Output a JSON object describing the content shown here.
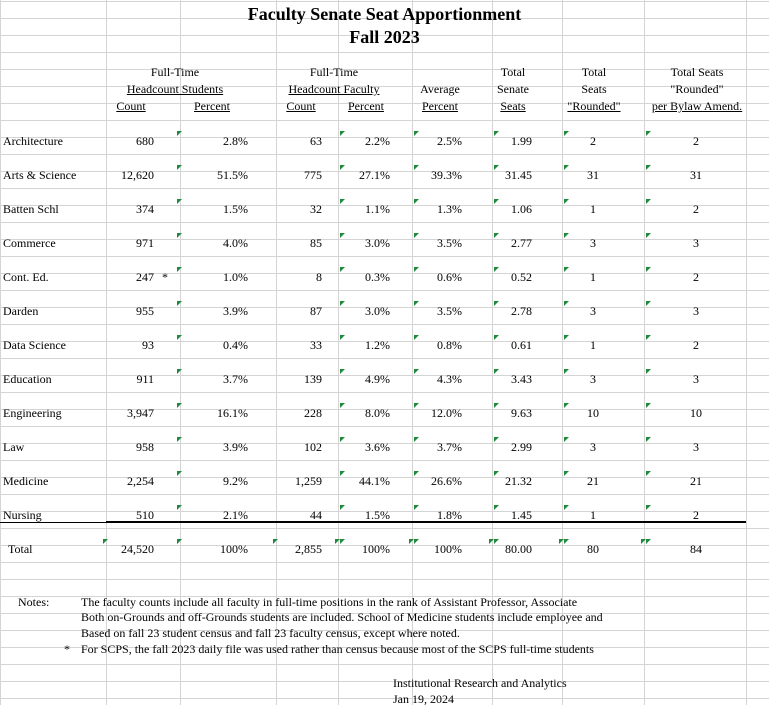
{
  "title": "Faculty Senate Seat Apportionment",
  "subtitle": "Fall 2023",
  "headers": {
    "students_group_1": "Full-Time",
    "students_group_2": "Headcount Students",
    "faculty_group_1": "Full-Time",
    "faculty_group_2": "Headcount Faculty",
    "count": "Count",
    "percent": "Percent",
    "avg_1": "Average",
    "avg_2": "Percent",
    "tsen_1": "Total",
    "tsen_2": "Senate",
    "tsen_3": "Seats",
    "tseats_1": "Total",
    "tseats_2": "Seats",
    "tseats_3": "\"Rounded\"",
    "bylaw_1": "Total Seats",
    "bylaw_2": "\"Rounded\"",
    "bylaw_3": "per Bylaw Amend."
  },
  "rows": [
    {
      "school": "Architecture",
      "s_count": "680",
      "s_mark": "",
      "s_pct": "2.8%",
      "f_count": "63",
      "f_pct": "2.2%",
      "avg": "2.5%",
      "seats": "1.99",
      "rounded": "2",
      "bylaw": "2"
    },
    {
      "school": "Arts & Science",
      "s_count": "12,620",
      "s_mark": "",
      "s_pct": "51.5%",
      "f_count": "775",
      "f_pct": "27.1%",
      "avg": "39.3%",
      "seats": "31.45",
      "rounded": "31",
      "bylaw": "31"
    },
    {
      "school": "Batten Schl",
      "s_count": "374",
      "s_mark": "",
      "s_pct": "1.5%",
      "f_count": "32",
      "f_pct": "1.1%",
      "avg": "1.3%",
      "seats": "1.06",
      "rounded": "1",
      "bylaw": "2"
    },
    {
      "school": "Commerce",
      "s_count": "971",
      "s_mark": "",
      "s_pct": "4.0%",
      "f_count": "85",
      "f_pct": "3.0%",
      "avg": "3.5%",
      "seats": "2.77",
      "rounded": "3",
      "bylaw": "3"
    },
    {
      "school": "Cont. Ed.",
      "s_count": "247",
      "s_mark": "*",
      "s_pct": "1.0%",
      "f_count": "8",
      "f_pct": "0.3%",
      "avg": "0.6%",
      "seats": "0.52",
      "rounded": "1",
      "bylaw": "2"
    },
    {
      "school": "Darden",
      "s_count": "955",
      "s_mark": "",
      "s_pct": "3.9%",
      "f_count": "87",
      "f_pct": "3.0%",
      "avg": "3.5%",
      "seats": "2.78",
      "rounded": "3",
      "bylaw": "3"
    },
    {
      "school": "Data Science",
      "s_count": "93",
      "s_mark": "",
      "s_pct": "0.4%",
      "f_count": "33",
      "f_pct": "1.2%",
      "avg": "0.8%",
      "seats": "0.61",
      "rounded": "1",
      "bylaw": "2"
    },
    {
      "school": "Education",
      "s_count": "911",
      "s_mark": "",
      "s_pct": "3.7%",
      "f_count": "139",
      "f_pct": "4.9%",
      "avg": "4.3%",
      "seats": "3.43",
      "rounded": "3",
      "bylaw": "3"
    },
    {
      "school": "Engineering",
      "s_count": "3,947",
      "s_mark": "",
      "s_pct": "16.1%",
      "f_count": "228",
      "f_pct": "8.0%",
      "avg": "12.0%",
      "seats": "9.63",
      "rounded": "10",
      "bylaw": "10"
    },
    {
      "school": "Law",
      "s_count": "958",
      "s_mark": "",
      "s_pct": "3.9%",
      "f_count": "102",
      "f_pct": "3.6%",
      "avg": "3.7%",
      "seats": "2.99",
      "rounded": "3",
      "bylaw": "3"
    },
    {
      "school": "Medicine",
      "s_count": "2,254",
      "s_mark": "",
      "s_pct": "9.2%",
      "f_count": "1,259",
      "f_pct": "44.1%",
      "avg": "26.6%",
      "seats": "21.32",
      "rounded": "21",
      "bylaw": "21"
    },
    {
      "school": "Nursing",
      "s_count": "510",
      "s_mark": "",
      "s_pct": "2.1%",
      "f_count": "44",
      "f_pct": "1.5%",
      "avg": "1.8%",
      "seats": "1.45",
      "rounded": "1",
      "bylaw": "2"
    }
  ],
  "total": {
    "school": "Total",
    "s_count": "24,520",
    "s_pct": "100%",
    "f_count": "2,855",
    "f_pct": "100%",
    "avg": "100%",
    "seats": "80.00",
    "rounded": "80",
    "bylaw": "84"
  },
  "notes": {
    "label": "Notes:",
    "line1": "The faculty counts include all faculty in full-time positions in the rank of Assistant Professor, Associate",
    "line2": "Both on-Grounds and off-Grounds students are included. School of Medicine students include employee and",
    "line3": "Based on fall 23 student census and fall 23 faculty census, except where noted.",
    "star": "*",
    "line4": "For SCPS, the fall 2023 daily file was used rather than census because most of the SCPS full-time students"
  },
  "footer": {
    "org": "Institutional Research and Analytics",
    "date": "Jan 19, 2024"
  },
  "colors": {
    "gridline": "#d4d4d4",
    "flag": "#1f8a3c"
  }
}
